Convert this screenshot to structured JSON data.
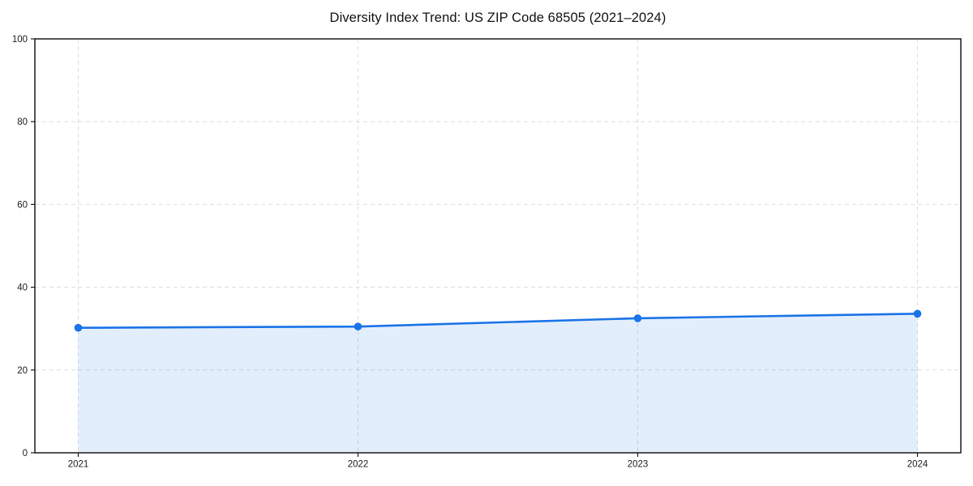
{
  "chart_data": {
    "type": "area",
    "title": "Diversity Index Trend: US ZIP Code 68505 (2021–2024)",
    "x": [
      2021,
      2022,
      2023,
      2024
    ],
    "xticks": [
      "2021",
      "2022",
      "2023",
      "2024"
    ],
    "series": [
      {
        "name": "Diversity Index",
        "values": [
          30.2,
          30.5,
          32.5,
          33.6
        ]
      }
    ],
    "ylim": [
      0,
      100
    ],
    "yticks": [
      0,
      20,
      40,
      60,
      80,
      100
    ],
    "grid": true,
    "grid_style": "dashed",
    "legend_position": "none",
    "xlabel": "",
    "ylabel": "",
    "colors": {
      "line": "#1a73e8",
      "marker": "#1a73e8",
      "fill": "rgba(26,115,232,0.12)",
      "grid": "#dcdcdc",
      "spine": "#1a1a1a",
      "tick_label": "#1a1a1a",
      "title": "#111111",
      "background": "#ffffff"
    }
  }
}
